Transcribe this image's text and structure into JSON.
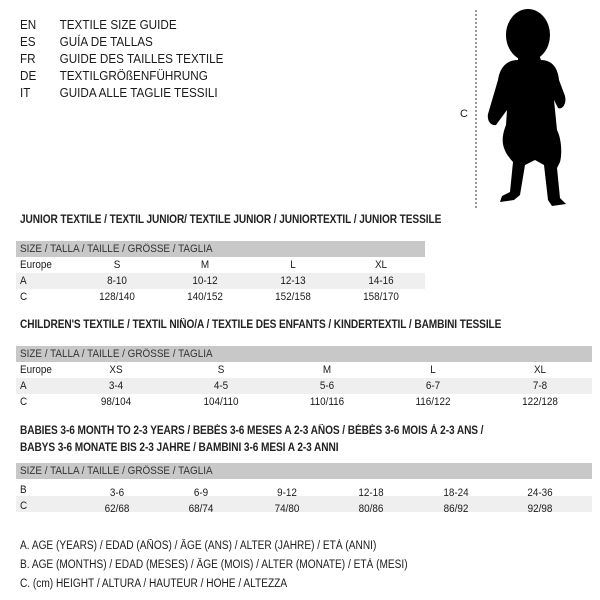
{
  "languages": [
    {
      "code": "EN",
      "title": "TEXTILE SIZE GUIDE"
    },
    {
      "code": "ES",
      "title": "GUÍA DE TALLAS"
    },
    {
      "code": "FR",
      "title": "GUIDE DES TAILLES TEXTILE"
    },
    {
      "code": "DE",
      "title": "TEXTILGRÖßENFÜHRUNG"
    },
    {
      "code": "IT",
      "title": "GUIDA ALLE TAGLIE TESSILI"
    }
  ],
  "figure": {
    "measure_label": "C",
    "icon": "baby-silhouette"
  },
  "colors": {
    "header_bg": "#c8c8c8",
    "shade_bg": "#efefef"
  },
  "tables": [
    {
      "title": "JUNIOR TEXTILE / TEXTIL JUNIOR/ TEXTILE JUNIOR / JUNIORTEXTIL / JUNIOR TESSILE",
      "header": "SIZE / TALLA / TAILLE / GRÖSSE / TAGLIA",
      "rows": [
        {
          "label": "Europe",
          "values": [
            "S",
            "M",
            "L",
            "XL"
          ]
        },
        {
          "label": "A",
          "values": [
            "8-10",
            "10-12",
            "12-13",
            "14-16"
          ]
        },
        {
          "label": "C",
          "values": [
            "128/140",
            "140/152",
            "152/158",
            "158/170"
          ]
        }
      ]
    },
    {
      "title": "CHILDREN'S TEXTILE / TEXTIL NIÑO/A / TEXTILE DES ENFANTS / KINDERTEXTIL / BAMBINI TESSILE",
      "header": "SIZE / TALLA / TAILLE / GRÖSSE / TAGLIA",
      "rows": [
        {
          "label": "Europe",
          "values": [
            "XS",
            "S",
            "M",
            "L",
            "XL"
          ]
        },
        {
          "label": "A",
          "values": [
            "3-4",
            "4-5",
            "5-6",
            "6-7",
            "7-8"
          ]
        },
        {
          "label": "C",
          "values": [
            "98/104",
            "104/110",
            "110/116",
            "116/122",
            "122/128"
          ]
        }
      ]
    },
    {
      "title": "BABIES 3-6 MONTH TO 2-3 YEARS / BEBÉS 3-6 MESES A 2-3 AÑOS / BÉBÉS 3-6 MOIS À 2-3 ANS /",
      "title2": "BABYS 3-6 MONATE BIS 2-3 JAHRE / BAMBINI 3-6 MESI A 2-3 ANNI",
      "header": "SIZE / TALLA / TAILLE / GRÖSSE / TAGLIA",
      "rows": [
        {
          "label": "B",
          "values": [
            "3-6",
            "6-9",
            "9-12",
            "12-18",
            "18-24",
            "24-36"
          ]
        },
        {
          "label": "C",
          "values": [
            "62/68",
            "68/74",
            "74/80",
            "80/86",
            "86/92",
            "92/98"
          ]
        }
      ]
    }
  ],
  "legend": [
    "A. AGE (YEARS) / EDAD (AÑOS) / ÂGE (ANS) / ALTER (JAHRE) / ETÀ (ANNI)",
    "B. AGE (MONTHS) / EDAD (MESES) / ÂGE (MOIS) / ALTER (MONATE) / ETÀ (MESI)",
    "C. (cm) HEIGHT / ALTURA / HAUTEUR / HÖHE / ALTEZZA"
  ]
}
